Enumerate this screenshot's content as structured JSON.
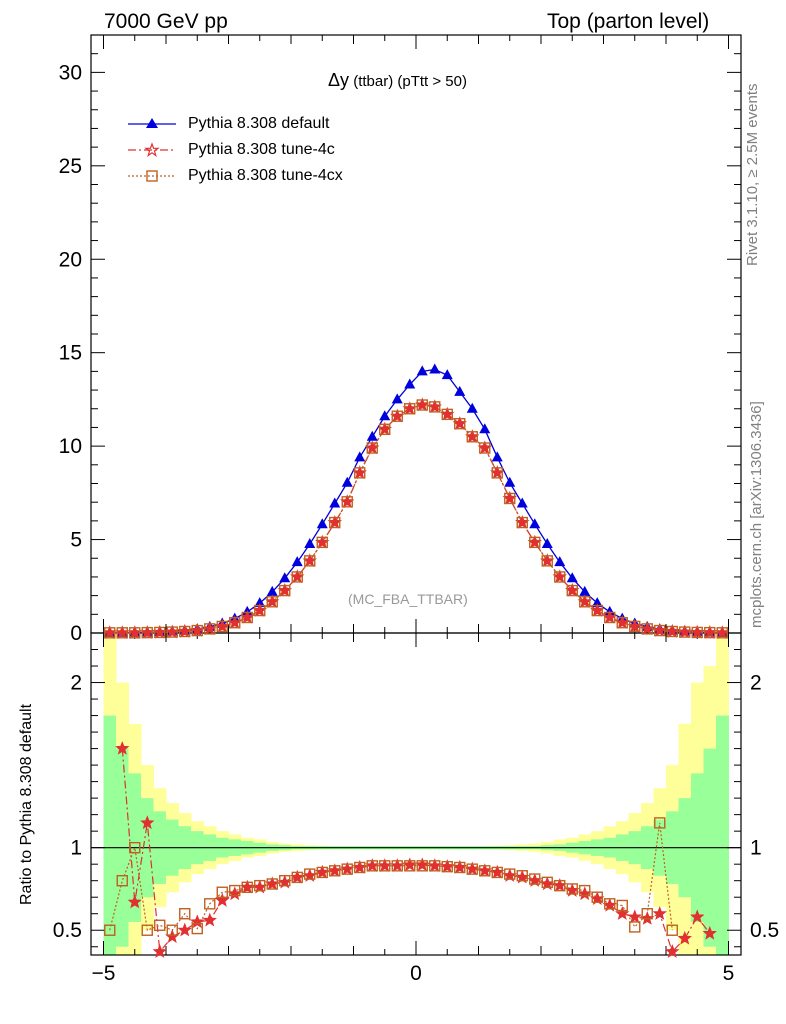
{
  "header": {
    "left": "7000 GeV pp",
    "right": "Top (parton level)"
  },
  "side_labels": {
    "rivet": "Rivet 3.1.10, ≥ 2.5M events",
    "mcplots": "mcplots.cern.ch [arXiv:1306.3436]"
  },
  "plot": {
    "title_main": "Δy",
    "title_sub": " (ttbar) (pTtt > 50)",
    "analysis_tag": "(MC_FBA_TTBAR)",
    "ratio_ylabel": "Ratio to Pythia 8.308 default"
  },
  "colors": {
    "default": "#0000dd",
    "tune4c": "#e03030",
    "tune4cx": "#c06020",
    "band_inner": "#99ff99",
    "band_outer": "#ffff99"
  },
  "legend": [
    {
      "label": "Pythia 8.308 default",
      "marker": "triangle",
      "style": "solid"
    },
    {
      "label": "Pythia 8.308 tune-4c",
      "marker": "star",
      "style": "dashdot"
    },
    {
      "label": "Pythia 8.308 tune-4cx",
      "marker": "open-square",
      "style": "dotted"
    }
  ],
  "chart_data": [
    {
      "type": "line",
      "xlim": [
        -5.2,
        5.2
      ],
      "ylim": [
        0,
        32
      ],
      "yticks": [
        0,
        5,
        10,
        15,
        20,
        25,
        30
      ],
      "x": [
        -4.9,
        -4.7,
        -4.5,
        -4.3,
        -4.1,
        -3.9,
        -3.7,
        -3.5,
        -3.3,
        -3.1,
        -2.9,
        -2.7,
        -2.5,
        -2.3,
        -2.1,
        -1.9,
        -1.7,
        -1.5,
        -1.3,
        -1.1,
        -0.9,
        -0.7,
        -0.5,
        -0.3,
        -0.1,
        0.1,
        0.3,
        0.5,
        0.7,
        0.9,
        1.1,
        1.3,
        1.5,
        1.7,
        1.9,
        2.1,
        2.3,
        2.5,
        2.7,
        2.9,
        3.1,
        3.3,
        3.5,
        3.7,
        3.9,
        4.1,
        4.3,
        4.5,
        4.7,
        4.9
      ],
      "series": [
        {
          "name": "Pythia 8.308 default",
          "values": [
            0.01,
            0.01,
            0.02,
            0.03,
            0.05,
            0.08,
            0.13,
            0.21,
            0.33,
            0.51,
            0.77,
            1.13,
            1.6,
            2.2,
            2.93,
            3.79,
            4.76,
            5.82,
            6.93,
            8.04,
            9.4,
            10.5,
            11.6,
            12.5,
            13.3,
            14.0,
            14.1,
            13.8,
            12.9,
            12.0,
            10.9,
            9.4,
            8.04,
            6.93,
            5.82,
            4.76,
            3.79,
            2.93,
            2.2,
            1.6,
            1.13,
            0.77,
            0.51,
            0.33,
            0.21,
            0.13,
            0.08,
            0.05,
            0.03,
            0.01
          ]
        },
        {
          "name": "Pythia 8.308 tune-4c",
          "values": [
            0.01,
            0.01,
            0.01,
            0.02,
            0.03,
            0.05,
            0.08,
            0.13,
            0.22,
            0.35,
            0.55,
            0.83,
            1.2,
            1.67,
            2.27,
            3.0,
            3.86,
            4.85,
            5.91,
            7.02,
            8.57,
            9.9,
            10.9,
            11.6,
            12.0,
            12.2,
            12.1,
            11.7,
            11.2,
            10.5,
            9.9,
            8.57,
            7.2,
            5.91,
            4.85,
            3.86,
            3.0,
            2.27,
            1.67,
            1.2,
            0.83,
            0.55,
            0.35,
            0.22,
            0.13,
            0.08,
            0.05,
            0.03,
            0.02,
            0.01
          ]
        },
        {
          "name": "Pythia 8.308 tune-4cx",
          "values": [
            0.01,
            0.01,
            0.01,
            0.02,
            0.03,
            0.05,
            0.08,
            0.13,
            0.22,
            0.35,
            0.55,
            0.83,
            1.2,
            1.67,
            2.27,
            3.0,
            3.86,
            4.85,
            5.91,
            7.02,
            8.57,
            9.9,
            10.9,
            11.6,
            12.0,
            12.2,
            12.1,
            11.7,
            11.2,
            10.5,
            9.9,
            8.57,
            7.2,
            5.91,
            4.85,
            3.86,
            3.0,
            2.27,
            1.67,
            1.2,
            0.83,
            0.55,
            0.35,
            0.22,
            0.13,
            0.08,
            0.05,
            0.03,
            0.02,
            0.01
          ]
        }
      ]
    },
    {
      "type": "line",
      "xlim": [
        -5.2,
        5.2
      ],
      "ylim": [
        0.35,
        2.3
      ],
      "yticks": [
        0.5,
        1,
        2
      ],
      "xticks": [
        -5,
        0,
        5
      ],
      "reference_line": 1,
      "x": [
        -4.9,
        -4.7,
        -4.5,
        -4.3,
        -4.1,
        -3.9,
        -3.7,
        -3.5,
        -3.3,
        -3.1,
        -2.9,
        -2.7,
        -2.5,
        -2.3,
        -2.1,
        -1.9,
        -1.7,
        -1.5,
        -1.3,
        -1.1,
        -0.9,
        -0.7,
        -0.5,
        -0.3,
        -0.1,
        0.1,
        0.3,
        0.5,
        0.7,
        0.9,
        1.1,
        1.3,
        1.5,
        1.7,
        1.9,
        2.1,
        2.3,
        2.5,
        2.7,
        2.9,
        3.1,
        3.3,
        3.5,
        3.7,
        3.9,
        4.1,
        4.3,
        4.5,
        4.7,
        4.9
      ],
      "band_inner_halfwidth": [
        0.8,
        0.6,
        0.45,
        0.3,
        0.22,
        0.17,
        0.13,
        0.1,
        0.08,
        0.06,
        0.05,
        0.04,
        0.03,
        0.02,
        0.015,
        0.01,
        0.01,
        0.01,
        0.01,
        0.01,
        0.01,
        0.01,
        0.01,
        0.01,
        0.01,
        0.01,
        0.01,
        0.01,
        0.01,
        0.01,
        0.01,
        0.01,
        0.01,
        0.01,
        0.01,
        0.015,
        0.02,
        0.03,
        0.04,
        0.05,
        0.06,
        0.08,
        0.1,
        0.13,
        0.17,
        0.22,
        0.3,
        0.45,
        0.6,
        0.8
      ],
      "band_outer_halfwidth": [
        1.3,
        1.0,
        0.75,
        0.5,
        0.36,
        0.27,
        0.21,
        0.16,
        0.13,
        0.1,
        0.08,
        0.06,
        0.05,
        0.035,
        0.025,
        0.02,
        0.015,
        0.012,
        0.01,
        0.01,
        0.01,
        0.01,
        0.01,
        0.01,
        0.01,
        0.01,
        0.01,
        0.01,
        0.01,
        0.01,
        0.01,
        0.012,
        0.015,
        0.02,
        0.025,
        0.035,
        0.05,
        0.06,
        0.08,
        0.1,
        0.13,
        0.16,
        0.21,
        0.27,
        0.36,
        0.5,
        0.75,
        1.0,
        1.1,
        1.3
      ],
      "series": [
        {
          "name": "Pythia 8.308 tune-4c",
          "values": [
            null,
            1.6,
            0.67,
            1.15,
            0.37,
            0.46,
            0.5,
            0.55,
            0.56,
            0.68,
            0.72,
            0.76,
            0.76,
            0.78,
            0.79,
            0.82,
            0.83,
            0.85,
            0.86,
            0.87,
            0.88,
            0.89,
            0.89,
            0.89,
            0.895,
            0.895,
            0.89,
            0.885,
            0.88,
            0.87,
            0.86,
            0.85,
            0.83,
            0.82,
            0.8,
            0.78,
            0.77,
            0.74,
            0.72,
            0.69,
            0.65,
            0.6,
            0.58,
            0.57,
            0.6,
            0.37,
            0.45,
            0.58,
            0.48,
            null
          ]
        },
        {
          "name": "Pythia 8.308 tune-4cx",
          "values": [
            0.5,
            0.8,
            1.0,
            0.5,
            0.53,
            0.5,
            0.6,
            0.51,
            0.66,
            0.73,
            0.74,
            0.76,
            0.77,
            0.78,
            0.8,
            0.82,
            0.84,
            0.85,
            0.86,
            0.87,
            0.88,
            0.89,
            0.89,
            0.89,
            0.89,
            0.89,
            0.89,
            0.885,
            0.88,
            0.87,
            0.86,
            0.85,
            0.84,
            0.83,
            0.81,
            0.79,
            0.77,
            0.75,
            0.74,
            0.7,
            0.66,
            0.65,
            0.52,
            0.6,
            1.15,
            0.5,
            null,
            null,
            null,
            null
          ]
        }
      ]
    }
  ]
}
